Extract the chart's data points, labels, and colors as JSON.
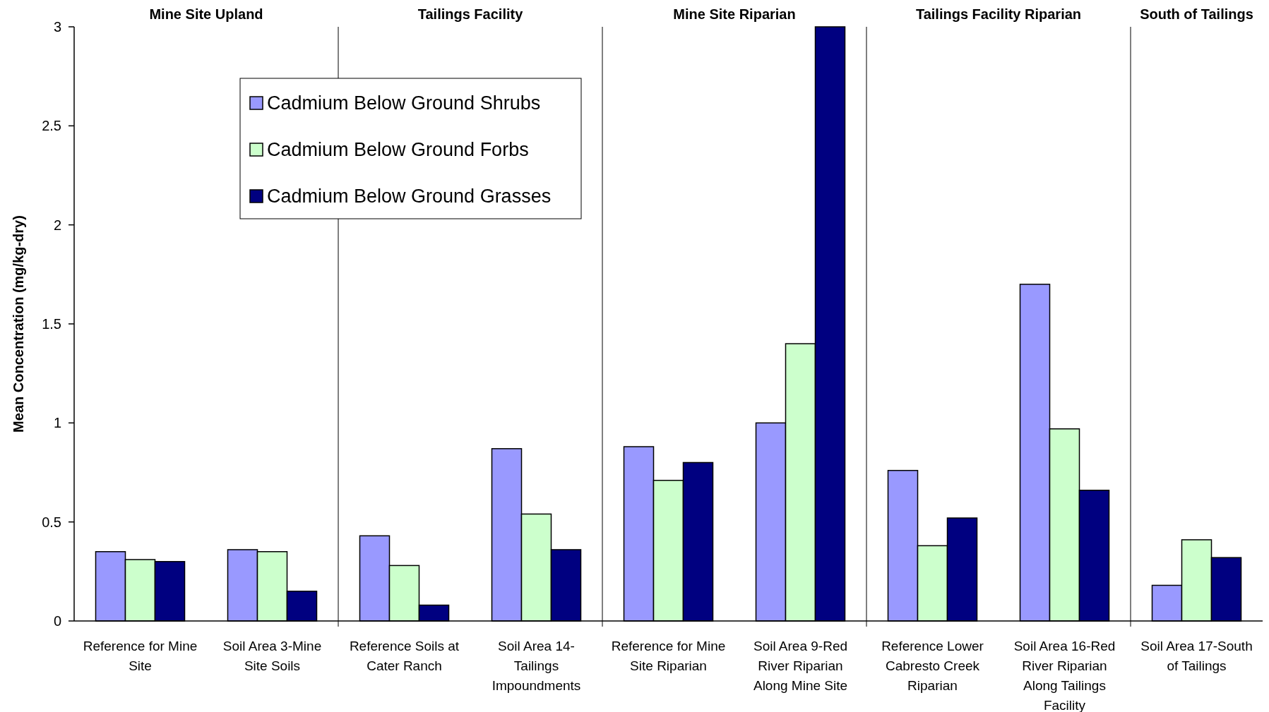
{
  "chart_data": {
    "type": "bar",
    "ylabel": "Mean Concentration (mg/kg-dry)",
    "categories": [
      "Reference for Mine Site",
      "Soil Area 3-Mine Site Soils",
      "Reference Soils at Cater Ranch",
      "Soil Area 14-Tailings Impoundments",
      "Reference for Mine Site Riparian",
      "Soil Area 9-Red River Riparian Along Mine Site",
      "Reference Lower Cabresto Creek Riparian",
      "Soil Area 16-Red River Riparian Along Tailings Facility",
      "Soil Area 17-South of Tailings"
    ],
    "series": [
      {
        "name": "Cadmium Below Ground Shrubs",
        "color": "#9999ff",
        "values": [
          0.35,
          0.36,
          0.43,
          0.87,
          0.88,
          1.0,
          0.76,
          1.7,
          0.18
        ]
      },
      {
        "name": "Cadmium Below Ground Forbs",
        "color": "#ccffcc",
        "values": [
          0.31,
          0.35,
          0.28,
          0.54,
          0.71,
          1.4,
          0.38,
          0.97,
          0.41
        ]
      },
      {
        "name": "Cadmium Below Ground Grasses",
        "color": "#000080",
        "values": [
          0.3,
          0.15,
          0.08,
          0.36,
          0.8,
          3.0,
          0.52,
          0.66,
          0.32
        ]
      }
    ],
    "ylim": [
      0,
      3
    ],
    "yticks": [
      0,
      0.5,
      1,
      1.5,
      2,
      2.5,
      3
    ],
    "grid": false,
    "legend": "top left",
    "annotations": [
      "Mine Site Upland",
      "Tailings Facility",
      "Mine Site Riparian",
      "Tailings Facility Riparian",
      "South of Tailings"
    ]
  }
}
